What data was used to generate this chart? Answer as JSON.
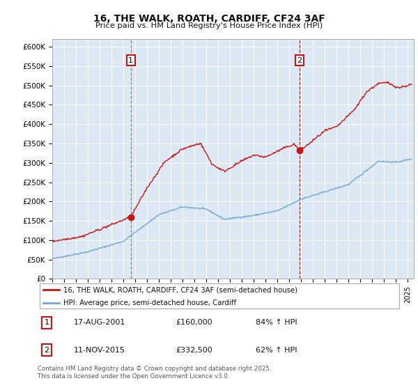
{
  "title": "16, THE WALK, ROATH, CARDIFF, CF24 3AF",
  "subtitle": "Price paid vs. HM Land Registry's House Price Index (HPI)",
  "background_color": "#ffffff",
  "plot_bg_color": "#dce8f3",
  "ylim": [
    0,
    620000
  ],
  "yticks": [
    0,
    50000,
    100000,
    150000,
    200000,
    250000,
    300000,
    350000,
    400000,
    450000,
    500000,
    550000,
    600000
  ],
  "ytick_labels": [
    "£0",
    "£50K",
    "£100K",
    "£150K",
    "£200K",
    "£250K",
    "£300K",
    "£350K",
    "£400K",
    "£450K",
    "£500K",
    "£550K",
    "£600K"
  ],
  "hpi_color": "#6fa8d8",
  "price_color": "#cc1111",
  "marker1_x": 2001.63,
  "marker1_y": 160000,
  "marker2_x": 2015.86,
  "marker2_y": 332500,
  "legend_line1": "16, THE WALK, ROATH, CARDIFF, CF24 3AF (semi-detached house)",
  "legend_line2": "HPI: Average price, semi-detached house, Cardiff",
  "annotation1_date": "17-AUG-2001",
  "annotation1_price": "£160,000",
  "annotation1_hpi": "84% ↑ HPI",
  "annotation2_date": "11-NOV-2015",
  "annotation2_price": "£332,500",
  "annotation2_hpi": "62% ↑ HPI",
  "footer": "Contains HM Land Registry data © Crown copyright and database right 2025.\nThis data is licensed under the Open Government Licence v3.0.",
  "xmin": 1995,
  "xmax": 2025.5
}
